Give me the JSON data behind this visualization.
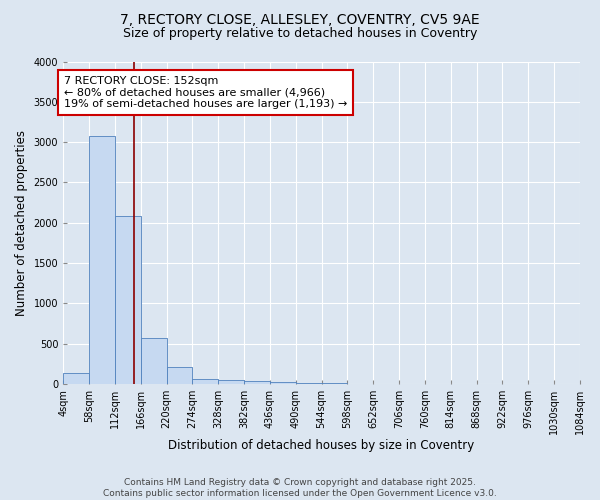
{
  "title_line1": "7, RECTORY CLOSE, ALLESLEY, COVENTRY, CV5 9AE",
  "title_line2": "Size of property relative to detached houses in Coventry",
  "xlabel": "Distribution of detached houses by size in Coventry",
  "ylabel": "Number of detached properties",
  "bar_values": [
    130,
    3080,
    2080,
    570,
    210,
    65,
    45,
    35,
    20,
    10,
    5,
    0,
    0,
    0,
    0,
    0,
    0,
    0,
    0,
    0
  ],
  "bin_edges": [
    4,
    58,
    112,
    166,
    220,
    274,
    328,
    382,
    436,
    490,
    544,
    598,
    652,
    706,
    760,
    814,
    868,
    922,
    976,
    1030,
    1084
  ],
  "tick_labels": [
    "4sqm",
    "58sqm",
    "112sqm",
    "166sqm",
    "220sqm",
    "274sqm",
    "328sqm",
    "382sqm",
    "436sqm",
    "490sqm",
    "544sqm",
    "598sqm",
    "652sqm",
    "706sqm",
    "760sqm",
    "814sqm",
    "868sqm",
    "922sqm",
    "976sqm",
    "1030sqm",
    "1084sqm"
  ],
  "bar_color": "#c6d9f1",
  "bar_edge_color": "#4f81bd",
  "background_color": "#dce6f1",
  "grid_color": "#ffffff",
  "ylim": [
    0,
    4000
  ],
  "yticks": [
    0,
    500,
    1000,
    1500,
    2000,
    2500,
    3000,
    3500,
    4000
  ],
  "property_size": 152,
  "red_line_color": "#8b0000",
  "annotation_text": "7 RECTORY CLOSE: 152sqm\n← 80% of detached houses are smaller (4,966)\n19% of semi-detached houses are larger (1,193) →",
  "annotation_box_color": "#ffffff",
  "annotation_box_edge": "#cc0000",
  "footer_line1": "Contains HM Land Registry data © Crown copyright and database right 2025.",
  "footer_line2": "Contains public sector information licensed under the Open Government Licence v3.0.",
  "title_fontsize": 10,
  "subtitle_fontsize": 9,
  "axis_label_fontsize": 8.5,
  "tick_fontsize": 7,
  "annotation_fontsize": 8,
  "footer_fontsize": 6.5
}
